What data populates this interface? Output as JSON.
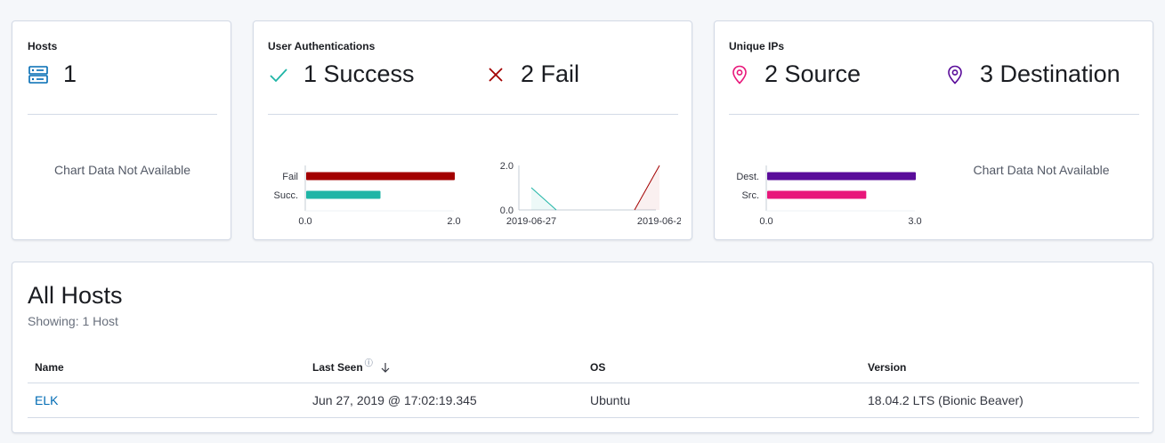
{
  "hosts_panel": {
    "title": "Hosts",
    "count": "1",
    "icon": "server-icon",
    "empty_text": "Chart Data Not Available"
  },
  "auth_panel": {
    "title": "User Authentications",
    "success": "1 Success",
    "fail": "2 Fail",
    "success_icon": "check-icon",
    "fail_icon": "cross-icon",
    "colors": {
      "success": "#1fb5a6",
      "fail": "#a30000"
    }
  },
  "ips_panel": {
    "title": "Unique IPs",
    "source": "2 Source",
    "destination": "3 Destination",
    "source_icon": "map-pin-icon",
    "destination_icon": "map-pin-icon",
    "empty_text": "Chart Data Not Available",
    "colors": {
      "source": "#e8177a",
      "destination": "#5a0c9a"
    }
  },
  "all_hosts": {
    "title": "All Hosts",
    "subtitle": "Showing: 1 Host",
    "columns": [
      "Name",
      "Last Seen",
      "OS",
      "Version"
    ],
    "last_seen_help": "ⓘ",
    "rows": [
      {
        "name": "ELK",
        "last_seen": "Jun 27, 2019 @ 17:02:19.345",
        "os": "Ubuntu",
        "version": "18.04.2 LTS (Bionic Beaver)"
      }
    ]
  },
  "chart_data": [
    {
      "type": "bar",
      "orientation": "horizontal",
      "categories": [
        "Fail",
        "Succ."
      ],
      "values": [
        2,
        1
      ],
      "colors": [
        "#a30000",
        "#1fb5a6"
      ],
      "xlim": [
        0,
        2
      ],
      "xticks": [
        "0.0",
        "2.0"
      ]
    },
    {
      "type": "area",
      "x": [
        "2019-06-27",
        "2019-06-2"
      ],
      "ylim": [
        0,
        2
      ],
      "yticks": [
        "0.0",
        "2.0"
      ],
      "series": [
        {
          "values": [
            1,
            0
          ],
          "color": "#1fb5a6"
        },
        {
          "values": [
            0,
            2
          ],
          "color": "#a30000"
        }
      ]
    },
    {
      "type": "bar",
      "orientation": "horizontal",
      "categories": [
        "Dest.",
        "Src."
      ],
      "values": [
        3,
        2
      ],
      "colors": [
        "#5a0c9a",
        "#e8177a"
      ],
      "xlim": [
        0,
        3
      ],
      "xticks": [
        "0.0",
        "3.0"
      ]
    }
  ]
}
